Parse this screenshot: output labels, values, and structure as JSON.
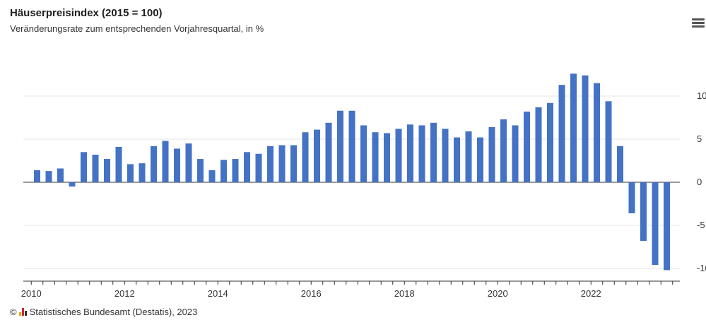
{
  "header": {
    "title": "Häuserpreisindex (2015 = 100)",
    "subtitle": "Veränderungsrate zum entsprechenden Vorjahresquartal, in %"
  },
  "menu_icon": "hamburger-menu-icon",
  "footer": {
    "copyright_symbol": "©",
    "source": "Statistisches Bundesamt (Destatis), 2023",
    "logo_icon": "destatis-logo-icon"
  },
  "colors": {
    "bar": "#4472c4",
    "grid": "#e6e6e6",
    "axis": "#333333",
    "logo": [
      "#f0a500",
      "#d9232d",
      "#2b2b2b"
    ]
  },
  "chart_data": {
    "type": "bar",
    "title": "Häuserpreisindex (2015 = 100)",
    "subtitle": "Veränderungsrate zum entsprechenden Vorjahresquartal, in %",
    "xlabel": "",
    "ylabel": "",
    "x_start": "2010 Q1",
    "x_end": "2023 Q3",
    "x_ticks": [
      "2010",
      "2012",
      "2014",
      "2016",
      "2018",
      "2020",
      "2022"
    ],
    "y_ticks": [
      "10",
      "5",
      "0",
      "-5",
      "-10"
    ],
    "y_tick_values": [
      10,
      5,
      0,
      -5,
      -10
    ],
    "ylim": [
      -10.5,
      12.5
    ],
    "grid": true,
    "legend": "none",
    "categories": [
      "2010 Q1",
      "2010 Q2",
      "2010 Q3",
      "2010 Q4",
      "2011 Q1",
      "2011 Q2",
      "2011 Q3",
      "2011 Q4",
      "2012 Q1",
      "2012 Q2",
      "2012 Q3",
      "2012 Q4",
      "2013 Q1",
      "2013 Q2",
      "2013 Q3",
      "2013 Q4",
      "2014 Q1",
      "2014 Q2",
      "2014 Q3",
      "2014 Q4",
      "2015 Q1",
      "2015 Q2",
      "2015 Q3",
      "2015 Q4",
      "2016 Q1",
      "2016 Q2",
      "2016 Q3",
      "2016 Q4",
      "2017 Q1",
      "2017 Q2",
      "2017 Q3",
      "2017 Q4",
      "2018 Q1",
      "2018 Q2",
      "2018 Q3",
      "2018 Q4",
      "2019 Q1",
      "2019 Q2",
      "2019 Q3",
      "2019 Q4",
      "2020 Q1",
      "2020 Q2",
      "2020 Q3",
      "2020 Q4",
      "2021 Q1",
      "2021 Q2",
      "2021 Q3",
      "2021 Q4",
      "2022 Q1",
      "2022 Q2",
      "2022 Q3",
      "2022 Q4",
      "2023 Q1",
      "2023 Q2",
      "2023 Q3"
    ],
    "values": [
      1.4,
      1.3,
      1.6,
      -0.5,
      3.5,
      3.2,
      2.7,
      4.1,
      2.1,
      2.2,
      4.2,
      4.8,
      3.9,
      4.5,
      2.7,
      1.4,
      2.6,
      2.7,
      3.5,
      3.3,
      4.2,
      4.3,
      4.3,
      5.8,
      6.1,
      6.9,
      8.3,
      8.3,
      6.6,
      5.8,
      5.7,
      6.2,
      6.7,
      6.6,
      6.9,
      6.2,
      5.2,
      5.9,
      5.2,
      6.4,
      7.3,
      6.6,
      8.2,
      8.7,
      9.2,
      11.3,
      12.6,
      12.4,
      11.5,
      9.4,
      4.2,
      -3.6,
      -6.8,
      -9.6,
      -10.2
    ]
  }
}
